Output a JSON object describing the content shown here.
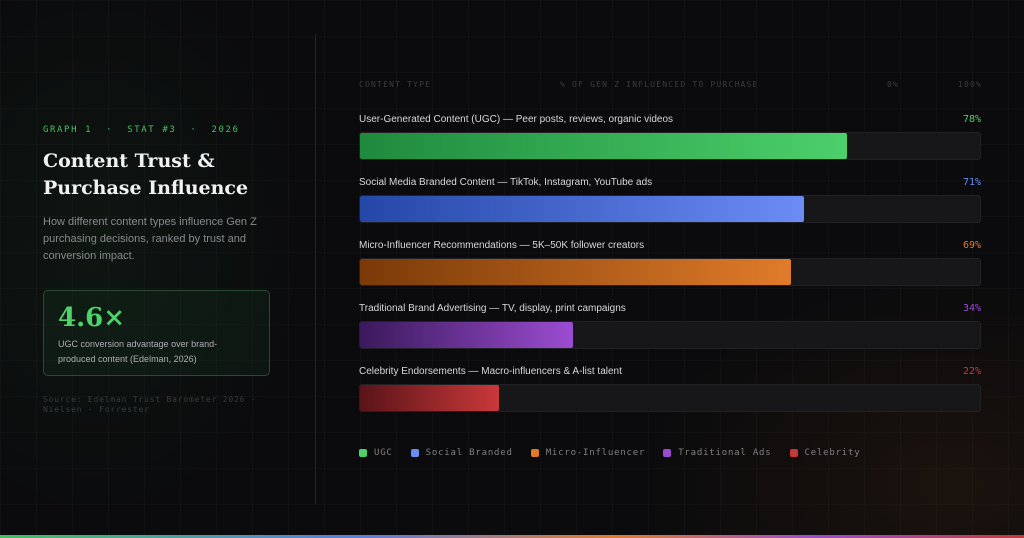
{
  "header": {
    "eyebrow": "GRAPH 1  ·  STAT #3  ·  2026",
    "title": "Content Trust & Purchase Influence",
    "subtitle": "How different content types influence Gen Z purchasing decisions, ranked by trust and conversion impact."
  },
  "stat_card": {
    "value": "4.6×",
    "caption": "UGC conversion advantage over brand-produced content (Edelman, 2026)"
  },
  "source": "Source: Edelman Trust Barometer 2026 · Nielsen · Forrester",
  "columns": {
    "content_type": "CONTENT TYPE",
    "metric": "% OF GEN Z INFLUENCED TO PURCHASE",
    "min": "0%",
    "max": "100%"
  },
  "colors": {
    "ugc": "#4cd06a",
    "social": "#6b8cf5",
    "micro": "#e07b2a",
    "traditional": "#9a4cd0",
    "celebrity": "#c8383a"
  },
  "chart_data": {
    "type": "bar",
    "orientation": "horizontal",
    "xlabel": "% OF GEN Z INFLUENCED TO PURCHASE",
    "xlim": [
      0,
      100
    ],
    "categories": [
      "User-Generated Content (UGC) — Peer posts, reviews, organic videos",
      "Social Media Branded Content — TikTok, Instagram, YouTube ads",
      "Micro-Influencer Recommendations — 5K–50K follower creators",
      "Traditional Brand Advertising — TV, display, print campaigns",
      "Celebrity Endorsements — Macro-influencers & A-list talent"
    ],
    "values": [
      78,
      71,
      69,
      34,
      22
    ],
    "value_labels": [
      "78%",
      "71%",
      "69%",
      "34%",
      "22%"
    ],
    "bar_colors": [
      [
        "#1f8a3e",
        "#4cd06a"
      ],
      [
        "#2447a8",
        "#6b8cf5"
      ],
      [
        "#7a3a08",
        "#e07b2a"
      ],
      [
        "#3a1a5c",
        "#9a4cd0"
      ],
      [
        "#5a1418",
        "#c8383a"
      ]
    ],
    "label_colors": [
      "#4cd06a",
      "#6b8cf5",
      "#e07b2a",
      "#9a4cd0",
      "#c8383a"
    ],
    "legend": [
      "UGC",
      "Social Branded",
      "Micro-Influencer",
      "Traditional Ads",
      "Celebrity"
    ],
    "legend_placement": "bottom-left",
    "grid": false
  }
}
